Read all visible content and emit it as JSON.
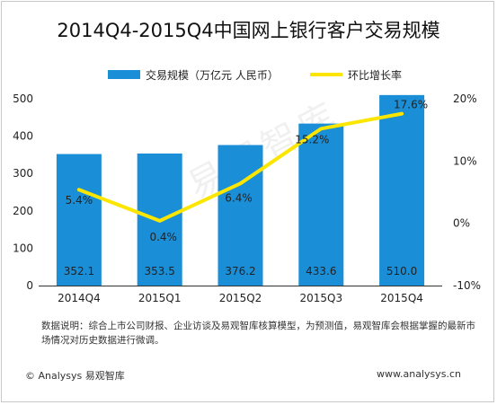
{
  "title": "2014Q4-2015Q4中国网上银行客户交易规模",
  "legend": {
    "bar_label": "交易规模（万亿元 人民币）",
    "line_label": "环比增长率"
  },
  "note": "数据说明：综合上市公司财报、企业访谈及易观智库核算模型，为预测值，易观智库会根据掌握的最新市场情况对历史数据进行微调。",
  "footer": {
    "left": "© Analysys 易观智库",
    "right": "www.analysys.cn"
  },
  "watermark": "易观智库",
  "colors": {
    "bar": "#1a8fd7",
    "line": "#fce600"
  },
  "chart_data": {
    "type": "bar",
    "categories": [
      "2014Q4",
      "2015Q1",
      "2015Q2",
      "2015Q3",
      "2015Q4"
    ],
    "series": [
      {
        "name": "交易规模（万亿元 人民币）",
        "type": "bar",
        "axis": "left",
        "values": [
          352.1,
          353.5,
          376.2,
          433.6,
          510.0
        ],
        "labels": [
          "352.1",
          "353.5",
          "376.2",
          "433.6",
          "510.0"
        ]
      },
      {
        "name": "环比增长率",
        "type": "line",
        "axis": "right",
        "values": [
          5.4,
          0.4,
          6.4,
          15.2,
          17.6
        ],
        "labels": [
          "5.4%",
          "0.4%",
          "6.4%",
          "15.2%",
          "17.6%"
        ]
      }
    ],
    "y_left": {
      "min": 0,
      "max": 500,
      "ticks": [
        0,
        100,
        200,
        300,
        400,
        500
      ]
    },
    "y_right": {
      "min": -10,
      "max": 20,
      "ticks": [
        "-10%",
        "0%",
        "10%",
        "20%"
      ]
    },
    "grid": false,
    "legend_position": "top"
  }
}
